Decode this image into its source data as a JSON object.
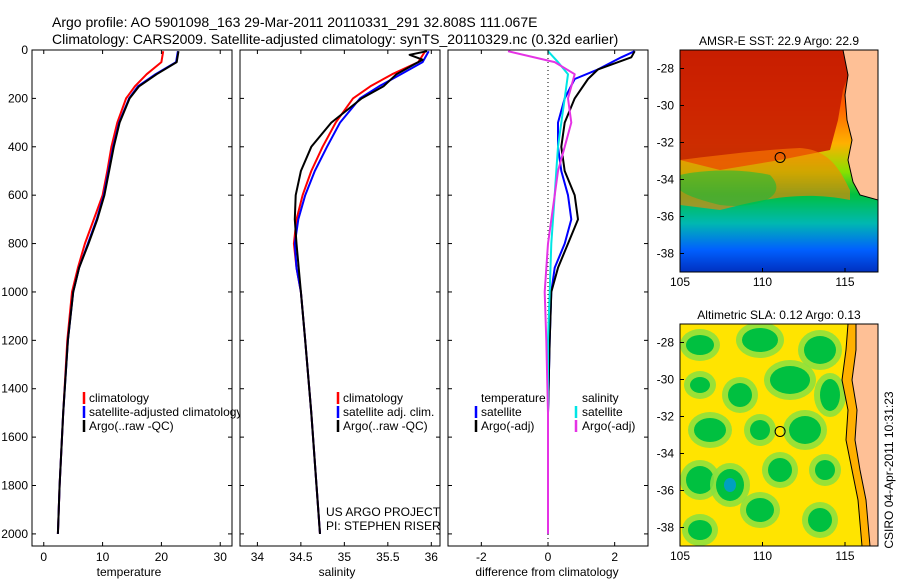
{
  "header": {
    "line1": "Argo profile: AO 5901098_163 29-Mar-2011 20110331_291 32.808S 111.067E",
    "line2": "Climatology: CARS2009. Satellite-adjusted climatology: synTS_20110329.nc (0.32d earlier)"
  },
  "side_label": "CSIRO 04-Apr-2011 10:31:23",
  "chart_data": [
    {
      "type": "line",
      "id": "temperature",
      "xlabel": "temperature",
      "ylabel": "",
      "xlim": [
        -2,
        32
      ],
      "ylim": [
        0,
        2050
      ],
      "y_reversed": true,
      "xticks": [
        0,
        10,
        20,
        30
      ],
      "yticks": [
        0,
        200,
        400,
        600,
        800,
        1000,
        1200,
        1400,
        1600,
        1800,
        2000
      ],
      "legend_position": "lower-right",
      "legend": [
        "climatology",
        "satellite-adjusted climatology",
        "Argo(..raw -QC)"
      ],
      "series": [
        {
          "name": "climatology",
          "color": "#ff0000",
          "x": [
            20.3,
            20.0,
            17.5,
            15.5,
            14.0,
            12.5,
            11.5,
            10.8,
            10.0,
            8.5,
            7.0,
            5.8,
            4.8,
            4.0,
            3.3,
            2.7,
            2.4
          ],
          "y": [
            5,
            50,
            100,
            150,
            200,
            300,
            400,
            500,
            600,
            700,
            800,
            900,
            1000,
            1200,
            1500,
            1800,
            2000
          ]
        },
        {
          "name": "satellite-adjusted climatology",
          "color": "#0000ff",
          "x": [
            22.8,
            22.5,
            19.0,
            16.0,
            14.5,
            12.8,
            11.8,
            11.0,
            10.2,
            9.0,
            7.5,
            6.0,
            5.0,
            4.1,
            3.3,
            2.7,
            2.4
          ],
          "y": [
            5,
            50,
            100,
            150,
            200,
            300,
            400,
            500,
            600,
            700,
            800,
            900,
            1000,
            1200,
            1500,
            1800,
            2000
          ]
        },
        {
          "name": "Argo(..raw -QC)",
          "color": "#000000",
          "x": [
            22.9,
            22.6,
            19.2,
            16.2,
            14.6,
            12.9,
            11.9,
            11.1,
            10.3,
            9.1,
            7.6,
            6.0,
            5.0,
            4.1,
            3.3,
            2.7,
            2.4
          ],
          "y": [
            5,
            50,
            100,
            150,
            200,
            300,
            400,
            500,
            600,
            700,
            800,
            900,
            1000,
            1200,
            1500,
            1800,
            2000
          ]
        }
      ]
    },
    {
      "type": "line",
      "id": "salinity",
      "xlabel": "salinity",
      "ylabel": "",
      "xlim": [
        33.8,
        36.1
      ],
      "ylim": [
        0,
        2050
      ],
      "y_reversed": true,
      "xticks": [
        34,
        34.5,
        35,
        35.5,
        36
      ],
      "legend_position": "lower-right",
      "legend": [
        "climatology",
        "satellite adj. clim.",
        "Argo(..raw -QC)"
      ],
      "series": [
        {
          "name": "climatology",
          "color": "#ff0000",
          "x": [
            35.93,
            35.85,
            35.55,
            35.3,
            35.1,
            34.9,
            34.75,
            34.62,
            34.52,
            34.45,
            34.42,
            34.45,
            34.5,
            34.55,
            34.62,
            34.68,
            34.72
          ],
          "y": [
            5,
            50,
            100,
            150,
            200,
            300,
            400,
            500,
            600,
            700,
            800,
            900,
            1000,
            1200,
            1500,
            1800,
            2000
          ]
        },
        {
          "name": "satellite adj. clim.",
          "color": "#0000ff",
          "x": [
            35.97,
            35.9,
            35.65,
            35.4,
            35.18,
            34.95,
            34.8,
            34.66,
            34.55,
            34.47,
            34.43,
            34.45,
            34.5,
            34.55,
            34.62,
            34.68,
            34.72
          ],
          "y": [
            5,
            50,
            100,
            150,
            200,
            300,
            400,
            500,
            600,
            700,
            800,
            900,
            1000,
            1200,
            1500,
            1800,
            2000
          ]
        },
        {
          "name": "Argo(..raw -QC)",
          "color": "#000000",
          "x": [
            35.95,
            35.75,
            35.9,
            35.8,
            35.6,
            35.45,
            35.2,
            34.85,
            34.62,
            34.5,
            34.44,
            34.43,
            34.45,
            34.5,
            34.55,
            34.62,
            34.68,
            34.72
          ],
          "y": [
            5,
            20,
            40,
            60,
            100,
            150,
            200,
            300,
            400,
            500,
            600,
            700,
            800,
            1000,
            1200,
            1500,
            1800,
            2000
          ]
        }
      ],
      "annotations": [
        "US ARGO PROJECT",
        "PI: STEPHEN RISER"
      ]
    },
    {
      "type": "line",
      "id": "difference",
      "xlabel": "difference from climatology",
      "ylabel": "",
      "xlim": [
        -3,
        3
      ],
      "ylim": [
        0,
        2050
      ],
      "y_reversed": true,
      "xticks": [
        -2,
        0,
        2
      ],
      "legend_position": "lower-right",
      "legend_headers": [
        "temperature",
        "salinity"
      ],
      "legend": [
        "satellite",
        "Argo(-adj)",
        "satellite",
        "Argo(-adj)"
      ],
      "series": [
        {
          "name": "satellite",
          "quantity": "temperature",
          "color": "#0000ff",
          "x": [
            2.6,
            2.2,
            1.5,
            0.8,
            0.5,
            0.3,
            0.3,
            0.4,
            0.6,
            0.7,
            0.5,
            0.2,
            0.1,
            0.05,
            0.0,
            0.0,
            0.0
          ],
          "y": [
            5,
            30,
            80,
            120,
            200,
            300,
            400,
            500,
            600,
            700,
            800,
            900,
            1000,
            1200,
            1500,
            1800,
            2000
          ]
        },
        {
          "name": "Argo(-adj)",
          "quantity": "temperature",
          "color": "#000000",
          "x": [
            2.6,
            2.5,
            1.5,
            1.2,
            0.8,
            0.5,
            0.4,
            0.5,
            0.8,
            0.9,
            0.6,
            0.3,
            0.1,
            0.05,
            0.0,
            0.0,
            0.0
          ],
          "y": [
            5,
            30,
            80,
            120,
            200,
            300,
            400,
            500,
            600,
            700,
            800,
            900,
            1000,
            1200,
            1500,
            1800,
            2000
          ]
        },
        {
          "name": "satellite",
          "quantity": "salinity",
          "color": "#00e5e5",
          "x": [
            0.0,
            0.3,
            0.6,
            0.5,
            0.4,
            0.3,
            0.25,
            0.2,
            0.1,
            0.05,
            0.0,
            0.0,
            0.0,
            0.0
          ],
          "y": [
            5,
            50,
            100,
            200,
            300,
            400,
            500,
            600,
            800,
            1000,
            1200,
            1500,
            1800,
            2000
          ]
        },
        {
          "name": "Argo(-adj)",
          "quantity": "salinity",
          "color": "#e533e5",
          "x": [
            -1.2,
            0.2,
            0.8,
            0.6,
            0.7,
            0.5,
            0.3,
            0.2,
            0.0,
            -0.1,
            -0.05,
            0.0,
            0.0,
            0.0
          ],
          "y": [
            5,
            50,
            100,
            200,
            300,
            400,
            500,
            600,
            800,
            1000,
            1200,
            1500,
            1800,
            2000
          ]
        }
      ]
    },
    {
      "type": "heatmap",
      "id": "sst-map",
      "title": "AMSR-E SST: 22.9 Argo: 22.9",
      "xlim": [
        105,
        117
      ],
      "ylim": [
        -39,
        -27
      ],
      "xticks": [
        105,
        110,
        115
      ],
      "yticks": [
        -28,
        -30,
        -32,
        -34,
        -36,
        -38
      ],
      "marker": {
        "x": 111.067,
        "y": -32.808
      }
    },
    {
      "type": "heatmap",
      "id": "sla-map",
      "title": "Altimetric SLA: 0.12 Argo: 0.13",
      "xlim": [
        105,
        117
      ],
      "ylim": [
        -39,
        -27
      ],
      "xticks": [
        105,
        110,
        115
      ],
      "yticks": [
        -28,
        -30,
        -32,
        -34,
        -36,
        -38
      ],
      "marker": {
        "x": 111.067,
        "y": -32.808
      }
    }
  ]
}
